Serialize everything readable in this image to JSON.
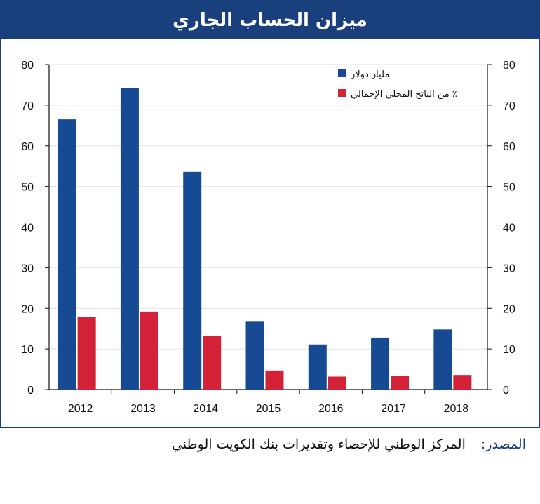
{
  "title": "ميزان الحساب الجاري",
  "source": {
    "label": "المصدر:",
    "text": "المركز الوطني للإحصاء وتقديرات بنك الكويت الوطني"
  },
  "colors": {
    "frame": "#1a3f7d",
    "series1": "#164a93",
    "series2": "#d32237"
  },
  "chart_data": {
    "type": "bar",
    "categories": [
      "2012",
      "2013",
      "2014",
      "2015",
      "2016",
      "2017",
      "2018"
    ],
    "series": [
      {
        "name": "مليار دولار",
        "values": [
          66.5,
          74.2,
          53.6,
          16.7,
          11.1,
          12.8,
          14.8
        ],
        "color": "#164a93"
      },
      {
        "name": "٪ من الناتج المحلي الإجمالي",
        "values": [
          17.8,
          19.2,
          13.3,
          4.7,
          3.2,
          3.4,
          3.6
        ],
        "color": "#d32237"
      }
    ],
    "ylim": [
      0,
      80
    ],
    "yticks": [
      0,
      10,
      20,
      30,
      40,
      50,
      60,
      70,
      80
    ],
    "y2lim": [
      0,
      80
    ],
    "y2ticks": [
      0,
      10,
      20,
      30,
      40,
      50,
      60,
      70,
      80
    ],
    "grid": true,
    "legend": "top-right",
    "xlabel": "",
    "ylabel": ""
  }
}
